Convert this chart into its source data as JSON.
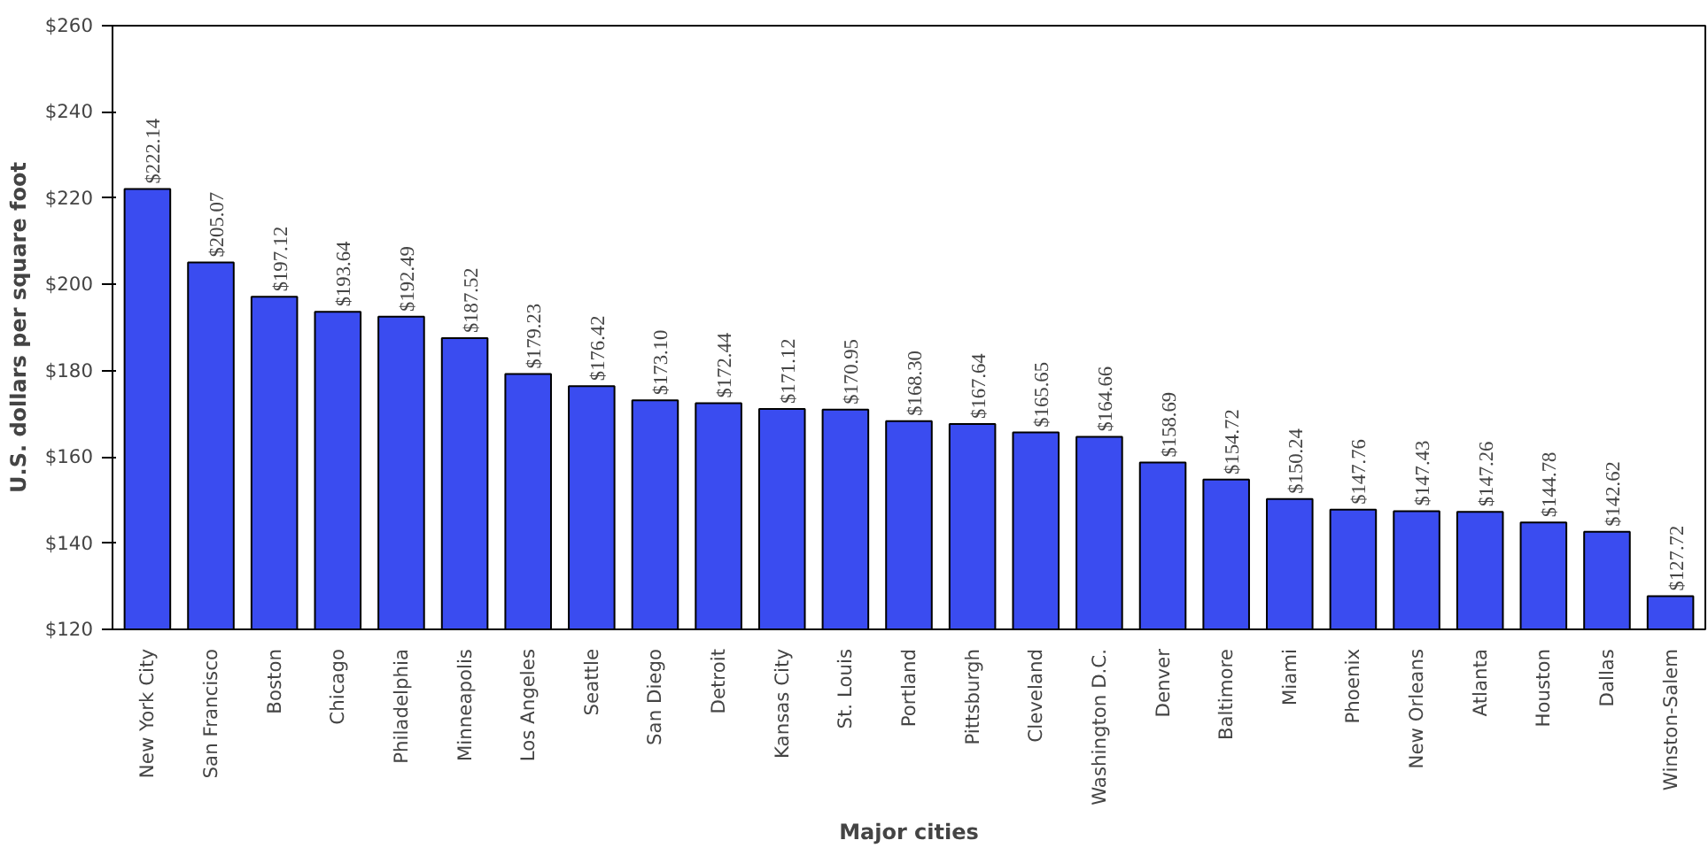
{
  "chart_data": {
    "type": "bar",
    "xlabel": "Major cities",
    "ylabel": "U.S. dollars per square foot",
    "categories": [
      "New York City",
      "San Francisco",
      "Boston",
      "Chicago",
      "Philadelphia",
      "Minneapolis",
      "Los Angeles",
      "Seattle",
      "San Diego",
      "Detroit",
      "Kansas City",
      "St. Louis",
      "Portland",
      "Pittsburgh",
      "Cleveland",
      "Washington D.C.",
      "Denver",
      "Baltimore",
      "Miami",
      "Phoenix",
      "New Orleans",
      "Atlanta",
      "Houston",
      "Dallas",
      "Winston-Salem"
    ],
    "values": [
      222.14,
      205.07,
      197.12,
      193.64,
      192.49,
      187.52,
      179.23,
      176.42,
      173.1,
      172.44,
      171.12,
      170.95,
      168.3,
      167.64,
      165.65,
      164.66,
      158.69,
      154.72,
      150.24,
      147.76,
      147.43,
      147.26,
      144.78,
      142.62,
      127.72
    ],
    "value_labels": [
      "$222.14",
      "$205.07",
      "$197.12",
      "$193.64",
      "$192.49",
      "$187.52",
      "$179.23",
      "$176.42",
      "$173.10",
      "$172.44",
      "$171.12",
      "$170.95",
      "$168.30",
      "$167.64",
      "$165.65",
      "$164.66",
      "$158.69",
      "$154.72",
      "$150.24",
      "$147.76",
      "$147.43",
      "$147.26",
      "$144.78",
      "$142.62",
      "$127.72"
    ],
    "color": "#3a4cf0",
    "ylim": [
      120,
      260
    ],
    "yticks": [
      {
        "value": 120,
        "label": "$120"
      },
      {
        "value": 140,
        "label": "$140"
      },
      {
        "value": 160,
        "label": "$160"
      },
      {
        "value": 180,
        "label": "$180"
      },
      {
        "value": 200,
        "label": "$200"
      },
      {
        "value": 220,
        "label": "$220"
      },
      {
        "value": 240,
        "label": "$240"
      },
      {
        "value": 260,
        "label": "$260"
      }
    ],
    "grid": false
  }
}
